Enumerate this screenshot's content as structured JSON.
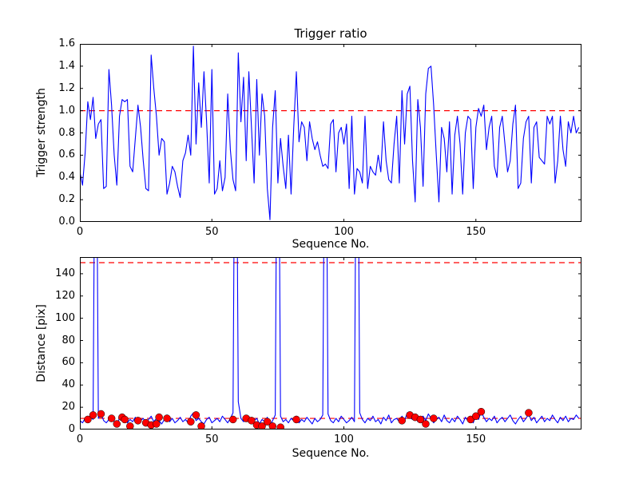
{
  "figure": {
    "background": "#ffffff",
    "frame_color": "#000000",
    "line_color": "#0000ff",
    "threshold_color": "#ff0000",
    "marker_color": "#ff0000"
  },
  "chart_data": [
    {
      "type": "line",
      "title": "Trigger ratio",
      "xlabel": "Sequence No.",
      "ylabel": "Trigger strength",
      "xlim": [
        0,
        190
      ],
      "ylim": [
        0,
        1.6
      ],
      "xticks": [
        0,
        50,
        100,
        150
      ],
      "xtick_labels": [
        "0",
        "50",
        "100",
        "150"
      ],
      "yticks": [
        0.0,
        0.2,
        0.4,
        0.6,
        0.8,
        1.0,
        1.2,
        1.4,
        1.6
      ],
      "ytick_labels": [
        "0.0",
        "0.2",
        "0.4",
        "0.6",
        "0.8",
        "1.0",
        "1.2",
        "1.4",
        "1.6"
      ],
      "grid": false,
      "legend": "none",
      "hlines": [
        {
          "y": 1.0,
          "color": "#ff0000",
          "style": "dashed"
        }
      ],
      "series": [
        {
          "name": "trigger-strength",
          "color": "#0000ff",
          "values": [
            0.45,
            0.33,
            0.62,
            1.08,
            0.92,
            1.12,
            0.75,
            0.88,
            0.92,
            0.3,
            0.32,
            1.37,
            1.05,
            0.6,
            0.33,
            0.95,
            1.1,
            1.08,
            1.1,
            0.5,
            0.45,
            0.75,
            1.05,
            0.85,
            0.55,
            0.3,
            0.28,
            1.5,
            1.2,
            0.95,
            0.6,
            0.75,
            0.72,
            0.25,
            0.35,
            0.5,
            0.45,
            0.32,
            0.22,
            0.55,
            0.62,
            0.78,
            0.6,
            1.58,
            0.7,
            1.25,
            0.85,
            1.35,
            0.9,
            0.35,
            1.37,
            0.25,
            0.3,
            0.55,
            0.28,
            0.4,
            1.15,
            0.65,
            0.38,
            0.28,
            1.52,
            0.9,
            1.3,
            0.55,
            1.35,
            0.85,
            0.35,
            1.28,
            0.6,
            1.15,
            0.95,
            0.3,
            0.02,
            0.85,
            1.18,
            0.35,
            0.75,
            0.5,
            0.3,
            0.78,
            0.25,
            0.85,
            1.35,
            0.72,
            0.9,
            0.85,
            0.55,
            0.9,
            0.75,
            0.65,
            0.72,
            0.6,
            0.5,
            0.52,
            0.48,
            0.88,
            0.92,
            0.45,
            0.8,
            0.85,
            0.7,
            0.88,
            0.3,
            0.95,
            0.25,
            0.48,
            0.45,
            0.35,
            0.95,
            0.3,
            0.5,
            0.45,
            0.42,
            0.6,
            0.45,
            0.9,
            0.55,
            0.38,
            0.35,
            0.7,
            0.95,
            0.35,
            1.18,
            0.7,
            1.15,
            1.22,
            0.55,
            0.18,
            1.1,
            0.85,
            0.32,
            1.15,
            1.38,
            1.4,
            1.05,
            0.6,
            0.18,
            0.85,
            0.75,
            0.45,
            0.9,
            0.25,
            0.78,
            0.95,
            0.7,
            0.25,
            0.8,
            0.95,
            0.92,
            0.3,
            0.85,
            1.02,
            0.95,
            1.05,
            0.65,
            0.85,
            0.95,
            0.5,
            0.4,
            0.85,
            0.95,
            0.7,
            0.45,
            0.55,
            0.88,
            1.05,
            0.3,
            0.35,
            0.75,
            0.9,
            0.95,
            0.35,
            0.85,
            0.9,
            0.58,
            0.55,
            0.52,
            0.95,
            0.88,
            0.95,
            0.35,
            0.55,
            0.95,
            0.65,
            0.5,
            0.9,
            0.8,
            0.95,
            0.8,
            0.85
          ]
        }
      ]
    },
    {
      "type": "line",
      "title": "",
      "xlabel": "Sequence No.",
      "ylabel": "Distance [pix]",
      "xlim": [
        0,
        190
      ],
      "ylim": [
        0,
        155
      ],
      "xticks": [
        0,
        50,
        100,
        150
      ],
      "xtick_labels": [
        "0",
        "50",
        "100",
        "150"
      ],
      "yticks": [
        0,
        20,
        40,
        60,
        80,
        100,
        120,
        140
      ],
      "ytick_labels": [
        "0",
        "20",
        "40",
        "60",
        "80",
        "100",
        "120",
        "140"
      ],
      "grid": false,
      "legend": "none",
      "hlines": [
        {
          "y": 150,
          "color": "#ff0000",
          "style": "dashed"
        },
        {
          "y": 10,
          "color": "#ff0000",
          "style": "dashed"
        }
      ],
      "series": [
        {
          "name": "distance",
          "color": "#0000ff",
          "values": [
            8,
            6,
            10,
            7,
            12,
            9,
            400,
            10,
            14,
            8,
            6,
            9,
            12,
            7,
            5,
            10,
            8,
            12,
            6,
            9,
            7,
            11,
            5,
            8,
            10,
            6,
            9,
            12,
            7,
            10,
            8,
            5,
            9,
            13,
            7,
            10,
            6,
            8,
            11,
            7,
            9,
            6,
            12,
            15,
            8,
            10,
            7,
            5,
            9,
            11,
            6,
            8,
            10,
            7,
            12,
            9,
            6,
            10,
            15,
            420,
            25,
            10,
            7,
            9,
            12,
            6,
            8,
            10,
            5,
            9,
            7,
            11,
            3,
            8,
            13,
            430,
            12,
            7,
            9,
            6,
            10,
            8,
            12,
            6,
            9,
            7,
            11,
            8,
            5,
            10,
            7,
            9,
            13,
            410,
            14,
            8,
            6,
            10,
            7,
            12,
            9,
            6,
            8,
            11,
            7,
            425,
            15,
            9,
            6,
            10,
            8,
            12,
            7,
            9,
            5,
            11,
            8,
            13,
            6,
            9,
            10,
            7,
            12,
            8,
            15,
            11,
            9,
            13,
            7,
            10,
            12,
            8,
            14,
            10,
            6,
            9,
            11,
            7,
            13,
            8,
            6,
            10,
            7,
            12,
            9,
            5,
            11,
            8,
            10,
            6,
            13,
            9,
            16,
            11,
            7,
            10,
            8,
            12,
            6,
            9,
            11,
            7,
            10,
            13,
            8,
            5,
            9,
            12,
            7,
            10,
            14,
            8,
            11,
            6,
            9,
            12,
            7,
            10,
            8,
            13,
            9,
            6,
            11,
            8,
            12,
            7,
            10,
            9,
            13,
            10
          ]
        }
      ],
      "scatter": {
        "name": "matched-detections",
        "color": "#ff0000",
        "x": [
          3,
          5,
          8,
          12,
          14,
          16,
          17,
          19,
          22,
          25,
          27,
          29,
          30,
          33,
          42,
          44,
          46,
          58,
          63,
          65,
          67,
          69,
          71,
          73,
          76,
          82,
          122,
          125,
          127,
          129,
          131,
          134,
          148,
          150,
          152,
          170
        ],
        "y": [
          9,
          13,
          14,
          10,
          5,
          11,
          9,
          3,
          8,
          6,
          4,
          5,
          11,
          10,
          7,
          13,
          3,
          9,
          10,
          8,
          4,
          3,
          7,
          3,
          2,
          9,
          8,
          13,
          11,
          9,
          5,
          10,
          9,
          12,
          16,
          15
        ]
      }
    }
  ]
}
